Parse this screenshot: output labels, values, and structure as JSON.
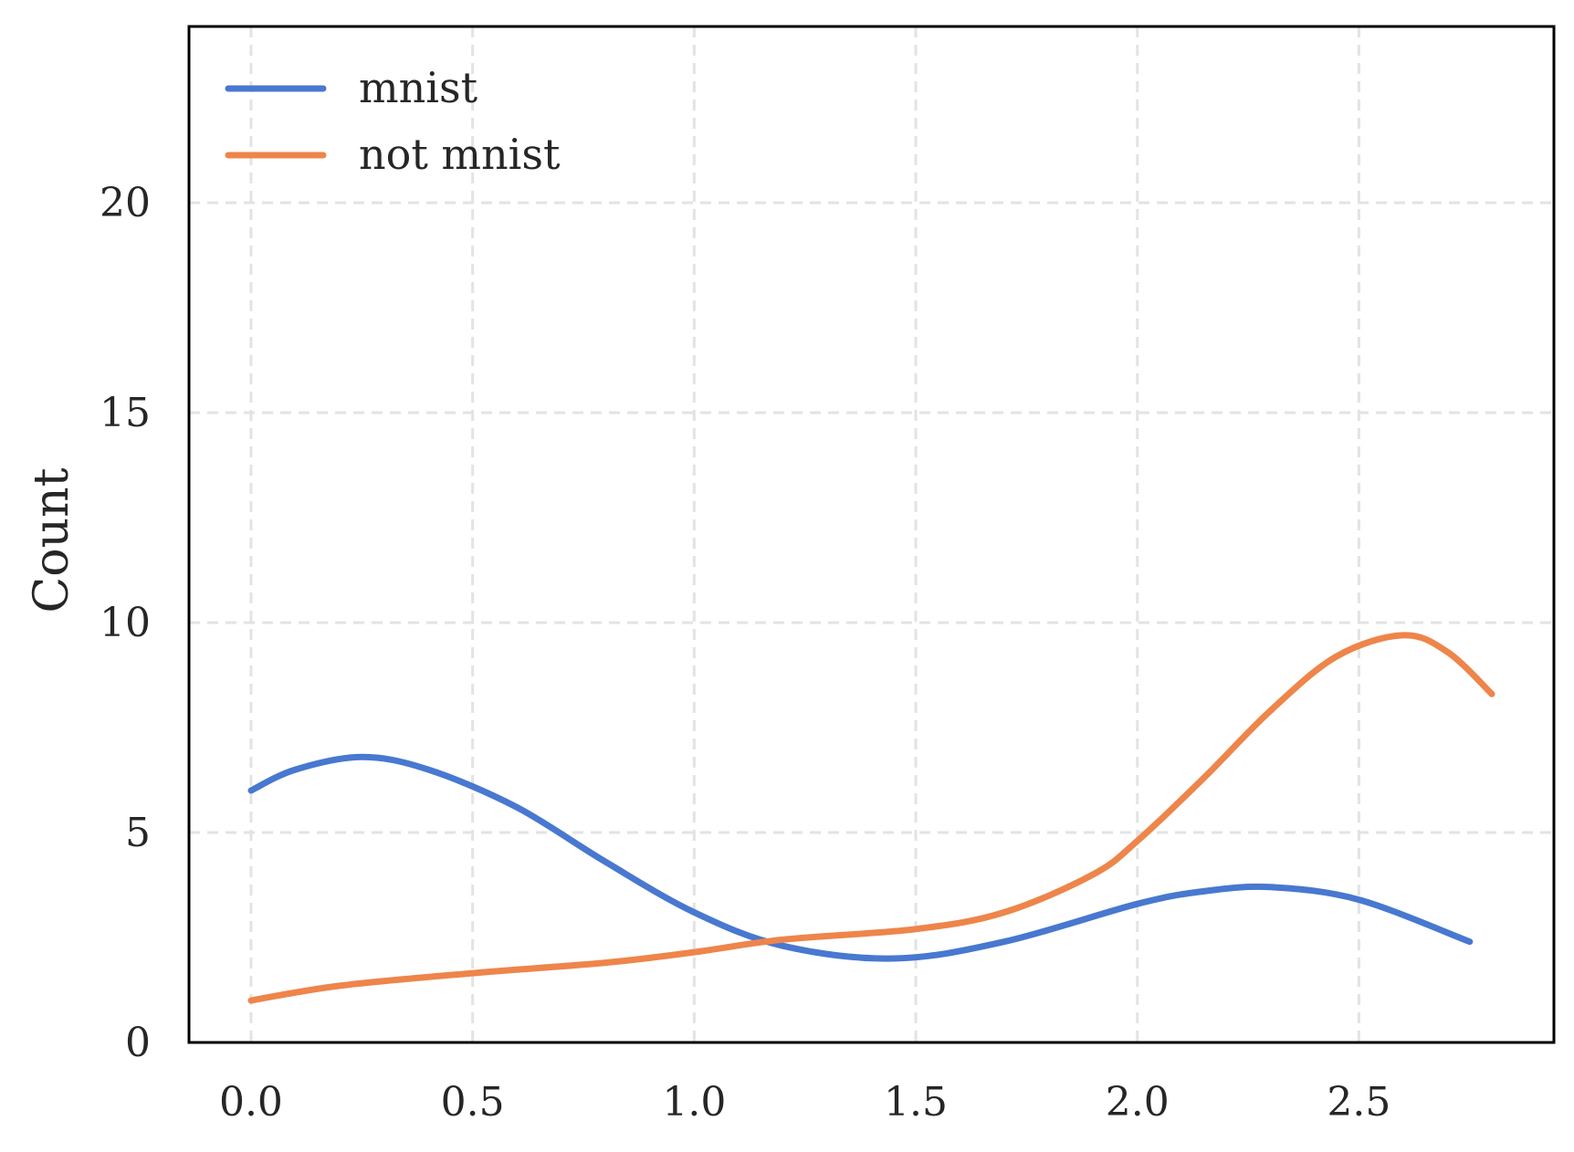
{
  "chart_data": {
    "type": "line",
    "title": "",
    "xlabel": "",
    "ylabel": "Count",
    "xlim": [
      -0.14,
      2.94
    ],
    "ylim": [
      0,
      24.2
    ],
    "grid": true,
    "grid_style": "dashed",
    "legend_position": "top-left",
    "xticks": [
      "0.0",
      "0.5",
      "1.0",
      "1.5",
      "2.0",
      "2.5"
    ],
    "yticks": [
      "0",
      "5",
      "10",
      "15",
      "20"
    ],
    "series": [
      {
        "name": "mnist",
        "color": "#4878d0",
        "x": [
          0.0,
          0.1,
          0.25,
          0.4,
          0.6,
          0.8,
          1.0,
          1.2,
          1.45,
          1.7,
          2.0,
          2.15,
          2.3,
          2.5,
          2.75
        ],
        "y": [
          6.0,
          6.5,
          6.8,
          6.5,
          5.6,
          4.3,
          3.1,
          2.3,
          2.0,
          2.4,
          3.3,
          3.6,
          3.7,
          3.4,
          2.4
        ]
      },
      {
        "name": "not mnist",
        "color": "#ee854a",
        "x": [
          0.0,
          0.2,
          0.5,
          0.8,
          1.0,
          1.2,
          1.5,
          1.7,
          1.9,
          2.0,
          2.15,
          2.3,
          2.45,
          2.6,
          2.7,
          2.8
        ],
        "y": [
          1.0,
          1.35,
          1.65,
          1.9,
          2.15,
          2.45,
          2.7,
          3.1,
          4.0,
          4.8,
          6.3,
          7.9,
          9.2,
          9.7,
          9.3,
          8.3
        ]
      }
    ]
  }
}
